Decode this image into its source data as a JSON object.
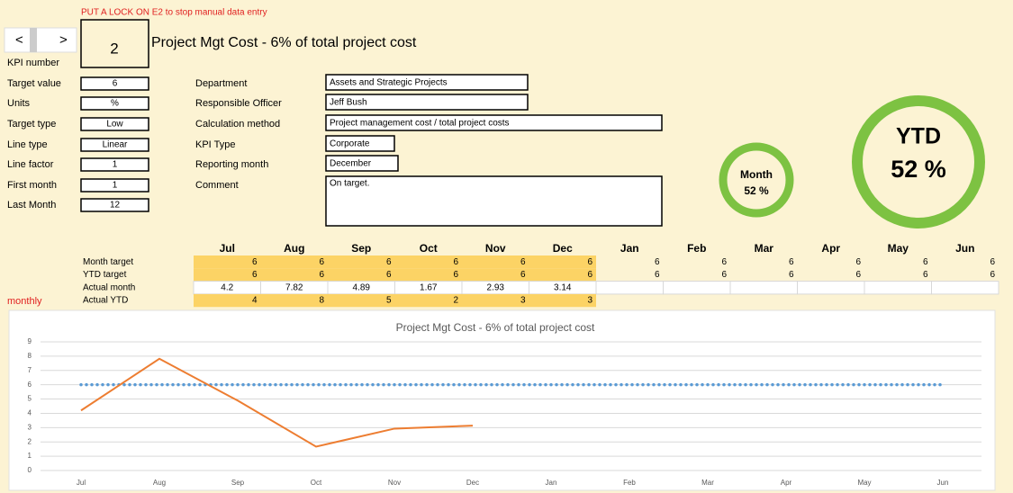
{
  "warning": "PUT A LOCK ON E2 to stop manual data entry",
  "nav": {
    "prev": "<",
    "next": ">"
  },
  "kpi": {
    "label": "KPI number",
    "number": 2,
    "title": "Project Mgt Cost - 6% of total project cost"
  },
  "settings": [
    {
      "label": "Target value",
      "value": 6
    },
    {
      "label": "Units",
      "value": "%"
    },
    {
      "label": "Target type",
      "value": "Low"
    },
    {
      "label": "Line type",
      "value": "Linear"
    },
    {
      "label": "Line factor",
      "value": 1
    },
    {
      "label": "First month",
      "value": 1
    },
    {
      "label": "Last Month",
      "value": 12
    }
  ],
  "details": [
    {
      "label": "Department",
      "value": "Assets and Strategic Projects"
    },
    {
      "label": "Responsible Officer",
      "value": "Jeff Bush"
    },
    {
      "label": "Calculation method",
      "value": "Project management cost / total project costs"
    },
    {
      "label": "KPI Type",
      "value": "Corporate"
    },
    {
      "label": "Reporting month",
      "value": "December"
    },
    {
      "label": "Comment",
      "value": "On target."
    }
  ],
  "gauges": {
    "month": {
      "label": "Month",
      "value": "52 %"
    },
    "ytd": {
      "label": "YTD",
      "value": "52 %"
    }
  },
  "table": {
    "months": [
      "Jul",
      "Aug",
      "Sep",
      "Oct",
      "Nov",
      "Dec",
      "Jan",
      "Feb",
      "Mar",
      "Apr",
      "May",
      "Jun"
    ],
    "note": "monthly",
    "rows": [
      {
        "label": "Month target",
        "values": [
          6,
          6,
          6,
          6,
          6,
          6,
          6,
          6,
          6,
          6,
          6,
          6
        ]
      },
      {
        "label": "YTD target",
        "values": [
          6,
          6,
          6,
          6,
          6,
          6,
          6,
          6,
          6,
          6,
          6,
          6
        ]
      },
      {
        "label": "Actual month",
        "values": [
          4.2,
          7.82,
          4.89,
          1.67,
          2.93,
          3.14,
          null,
          null,
          null,
          null,
          null,
          null
        ]
      },
      {
        "label": "Actual YTD",
        "values": [
          4,
          8,
          5,
          2,
          3,
          3,
          null,
          null,
          null,
          null,
          null,
          null
        ]
      }
    ]
  },
  "chart": {
    "type": "line",
    "title": "Project Mgt Cost - 6% of total project cost",
    "categories": [
      "Jul",
      "Aug",
      "Sep",
      "Oct",
      "Nov",
      "Dec",
      "Jan",
      "Feb",
      "Mar",
      "Apr",
      "May",
      "Jun"
    ],
    "ylim": [
      0,
      9
    ],
    "yticks": [
      0,
      1,
      2,
      3,
      4,
      5,
      6,
      7,
      8,
      9
    ],
    "grid": true,
    "series": [
      {
        "color": "#5b9bd5",
        "style": "dotted",
        "values": [
          6,
          6,
          6,
          6,
          6,
          6,
          6,
          6,
          6,
          6,
          6,
          6
        ]
      },
      {
        "color": "#ed7d31",
        "style": "solid",
        "values": [
          4.2,
          7.82,
          4.89,
          1.67,
          2.93,
          3.14,
          null,
          null,
          null,
          null,
          null,
          null
        ]
      }
    ]
  }
}
